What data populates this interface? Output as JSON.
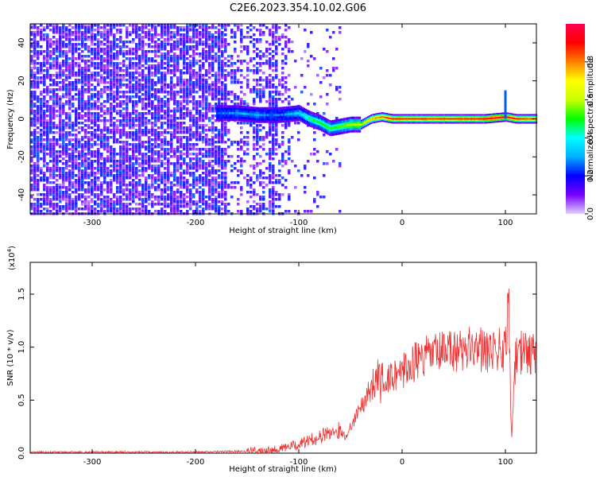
{
  "figure": {
    "title": "C2E6.2023.354.10.02.G06"
  },
  "chart_data": [
    {
      "type": "heatmap",
      "xlabel": "Height of straight line (km)",
      "ylabel": "Frequency (Hz)",
      "xlim": [
        -360,
        130
      ],
      "ylim": [
        -50,
        50
      ],
      "x_ticks": [
        -300,
        -200,
        -100,
        0,
        100
      ],
      "y_ticks": [
        -40,
        -20,
        0,
        20,
        40
      ],
      "colorbar": {
        "label": "Normalized spectral amplitude",
        "ticks": [
          0.0,
          0.2,
          0.4,
          0.6,
          0.8
        ],
        "range": [
          0,
          1
        ],
        "colormap": [
          "#e0d0ff",
          "#7a00ff",
          "#0000ff",
          "#00b0ff",
          "#00ffff",
          "#00ff00",
          "#c8ff00",
          "#ffff00",
          "#ff8000",
          "#ff0000",
          "#ff0050"
        ]
      },
      "signal_track": {
        "x": [
          -180,
          -160,
          -140,
          -120,
          -100,
          -90,
          -80,
          -70,
          -60,
          -50,
          -40,
          -30,
          -20,
          -10,
          0,
          20,
          40,
          60,
          80,
          100,
          110,
          130
        ],
        "frequency": [
          3,
          3,
          2,
          2,
          3,
          0,
          -2,
          -5,
          -4,
          -3,
          -3,
          0,
          1,
          0,
          0,
          0,
          0,
          0,
          0,
          1,
          0,
          0
        ],
        "amplitude": [
          0.25,
          0.3,
          0.3,
          0.25,
          0.35,
          0.45,
          0.5,
          0.5,
          0.55,
          0.6,
          0.65,
          0.75,
          0.85,
          0.9,
          0.9,
          0.9,
          0.9,
          0.9,
          0.95,
          0.95,
          0.9,
          0.85
        ]
      },
      "spike": {
        "x": 100,
        "frequency_range": [
          0,
          15
        ]
      }
    },
    {
      "type": "line",
      "xlabel": "Height of straight line (km)",
      "ylabel": "SNR (10 * v/v)",
      "y_multiplier_label": "(x10",
      "y_multiplier_exp": "4",
      "y_multiplier_close": ")",
      "xlim": [
        -360,
        130
      ],
      "ylim": [
        0,
        1.8
      ],
      "x_ticks": [
        -300,
        -200,
        -100,
        0,
        100
      ],
      "y_ticks": [
        0.0,
        0.5,
        1.0,
        1.5
      ],
      "y_tick_labels": [
        "0.0",
        "0.5",
        "1.0",
        "1.5"
      ],
      "series": [
        {
          "color": "#ee3333",
          "x": [
            -360,
            -300,
            -250,
            -200,
            -150,
            -120,
            -110,
            -100,
            -90,
            -80,
            -70,
            -60,
            -55,
            -50,
            -45,
            -40,
            -30,
            -20,
            -10,
            0,
            10,
            20,
            30,
            40,
            50,
            60,
            70,
            80,
            90,
            100,
            103,
            106,
            110,
            120,
            130
          ],
          "values": [
            0.01,
            0.01,
            0.01,
            0.01,
            0.02,
            0.04,
            0.06,
            0.08,
            0.12,
            0.15,
            0.2,
            0.22,
            0.15,
            0.25,
            0.35,
            0.45,
            0.6,
            0.7,
            0.72,
            0.78,
            0.85,
            0.9,
            0.93,
            0.95,
            0.97,
            0.98,
            1.0,
            0.99,
            1.0,
            0.95,
            1.5,
            0.1,
            0.95,
            0.95,
            0.93
          ]
        }
      ]
    }
  ]
}
